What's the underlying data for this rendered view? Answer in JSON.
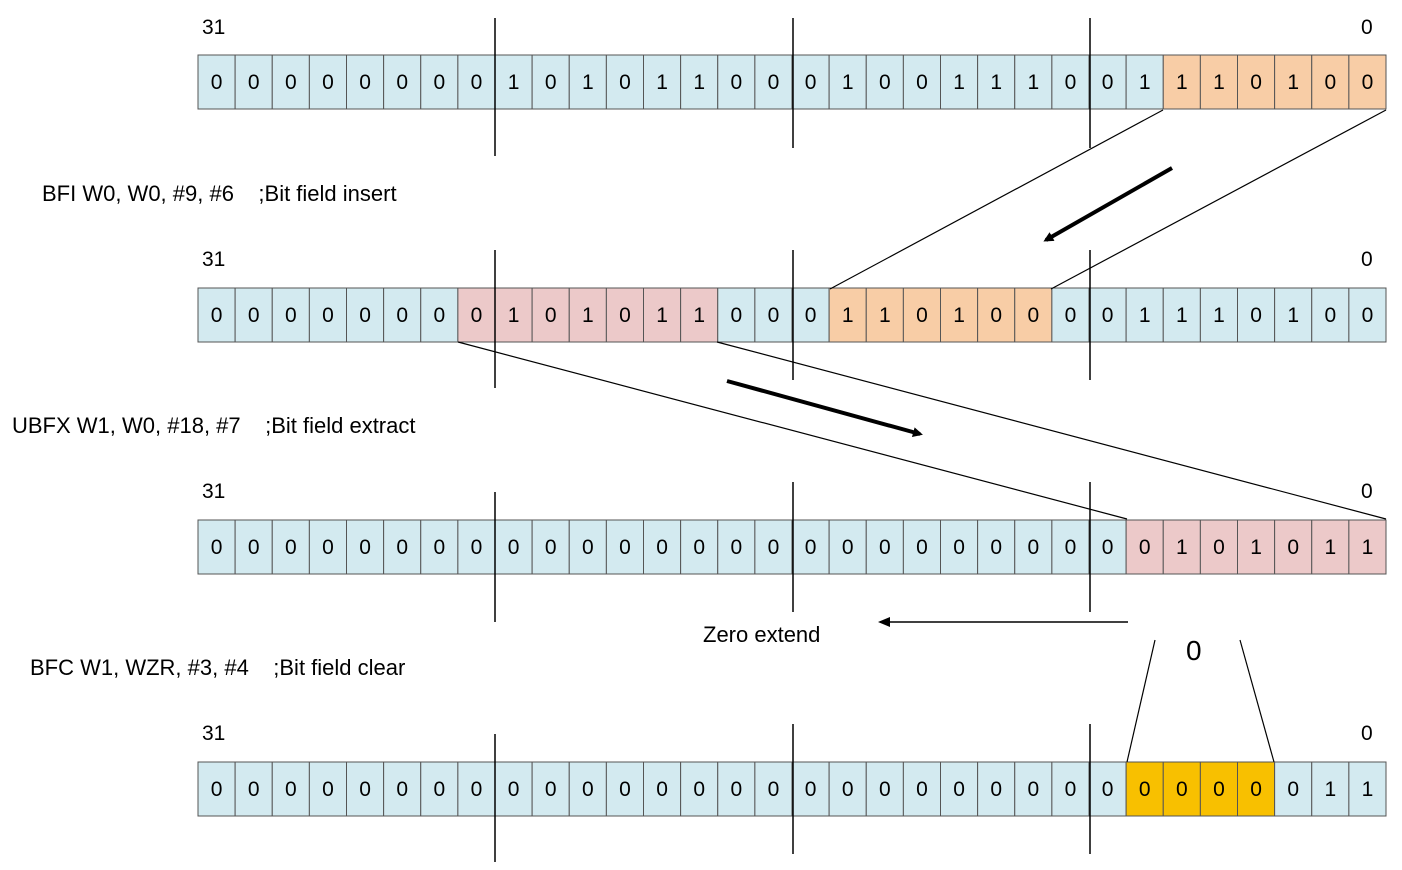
{
  "colors": {
    "base": "#d3eaf0",
    "inserted": "#f8cda6",
    "extracted": "#ecc9c9",
    "cleared": "#f8c000",
    "stroke": "#555555"
  },
  "rows": [
    {
      "msb_label": "31",
      "lsb_label": "0",
      "bits": [
        "0",
        "0",
        "0",
        "0",
        "0",
        "0",
        "0",
        "0",
        "1",
        "0",
        "1",
        "0",
        "1",
        "1",
        "0",
        "0",
        "0",
        "1",
        "0",
        "0",
        "1",
        "1",
        "1",
        "0",
        "0",
        "1",
        "1",
        "1",
        "0",
        "1",
        "0",
        "0"
      ],
      "fills": [
        "base",
        "base",
        "base",
        "base",
        "base",
        "base",
        "base",
        "base",
        "base",
        "base",
        "base",
        "base",
        "base",
        "base",
        "base",
        "base",
        "base",
        "base",
        "base",
        "base",
        "base",
        "base",
        "base",
        "base",
        "base",
        "base",
        "inserted",
        "inserted",
        "inserted",
        "inserted",
        "inserted",
        "inserted"
      ]
    },
    {
      "msb_label": "31",
      "lsb_label": "0",
      "bits": [
        "0",
        "0",
        "0",
        "0",
        "0",
        "0",
        "0",
        "0",
        "1",
        "0",
        "1",
        "0",
        "1",
        "1",
        "0",
        "0",
        "0",
        "1",
        "1",
        "0",
        "1",
        "0",
        "0",
        "0",
        "0",
        "1",
        "1",
        "1",
        "0",
        "1",
        "0",
        "0"
      ],
      "fills": [
        "base",
        "base",
        "base",
        "base",
        "base",
        "base",
        "base",
        "extracted",
        "extracted",
        "extracted",
        "extracted",
        "extracted",
        "extracted",
        "extracted",
        "base",
        "base",
        "base",
        "inserted",
        "inserted",
        "inserted",
        "inserted",
        "inserted",
        "inserted",
        "base",
        "base",
        "base",
        "base",
        "base",
        "base",
        "base",
        "base",
        "base"
      ]
    },
    {
      "msb_label": "31",
      "lsb_label": "0",
      "bits": [
        "0",
        "0",
        "0",
        "0",
        "0",
        "0",
        "0",
        "0",
        "0",
        "0",
        "0",
        "0",
        "0",
        "0",
        "0",
        "0",
        "0",
        "0",
        "0",
        "0",
        "0",
        "0",
        "0",
        "0",
        "0",
        "0",
        "1",
        "0",
        "1",
        "0",
        "1",
        "1"
      ],
      "fills": [
        "base",
        "base",
        "base",
        "base",
        "base",
        "base",
        "base",
        "base",
        "base",
        "base",
        "base",
        "base",
        "base",
        "base",
        "base",
        "base",
        "base",
        "base",
        "base",
        "base",
        "base",
        "base",
        "base",
        "base",
        "base",
        "extracted",
        "extracted",
        "extracted",
        "extracted",
        "extracted",
        "extracted",
        "extracted"
      ]
    },
    {
      "msb_label": "31",
      "lsb_label": "0",
      "bits": [
        "0",
        "0",
        "0",
        "0",
        "0",
        "0",
        "0",
        "0",
        "0",
        "0",
        "0",
        "0",
        "0",
        "0",
        "0",
        "0",
        "0",
        "0",
        "0",
        "0",
        "0",
        "0",
        "0",
        "0",
        "0",
        "0",
        "0",
        "0",
        "0",
        "0",
        "1",
        "1"
      ],
      "fills": [
        "base",
        "base",
        "base",
        "base",
        "base",
        "base",
        "base",
        "base",
        "base",
        "base",
        "base",
        "base",
        "base",
        "base",
        "base",
        "base",
        "base",
        "base",
        "base",
        "base",
        "base",
        "base",
        "base",
        "base",
        "base",
        "cleared",
        "cleared",
        "cleared",
        "cleared",
        "base",
        "base",
        "base"
      ]
    }
  ],
  "instructions": {
    "bfi": "BFI W0, W0, #9, #6    ;Bit field insert",
    "ubfx": "UBFX W1, W0, #18, #7    ;Bit field extract",
    "bfc": "BFC W1, WZR, #3, #4    ;Bit field clear"
  },
  "annotations": {
    "zero_extend": "Zero extend",
    "zero_source": "0"
  }
}
